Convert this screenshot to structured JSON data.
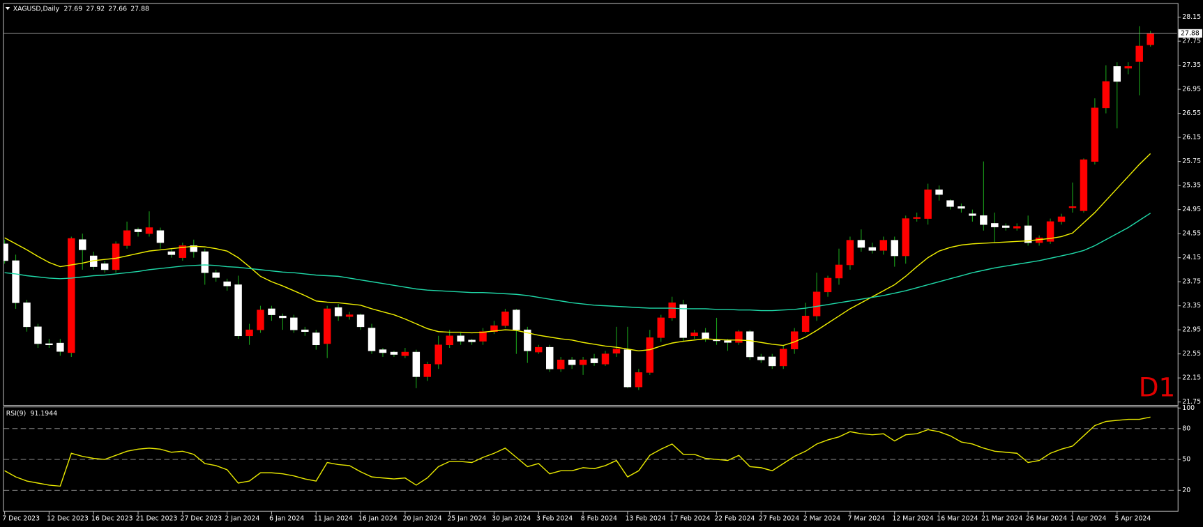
{
  "chart_data": [
    {
      "type": "candlestick",
      "title": "XAGUSD,Daily",
      "timeframe_label": "D1",
      "categories": [
        "7 Dec 2023",
        null,
        null,
        null,
        "12 Dec 2023",
        null,
        null,
        null,
        "16 Dec 2023",
        null,
        null,
        null,
        "21 Dec 2023",
        null,
        null,
        null,
        "27 Dec 2023",
        null,
        null,
        null,
        "2 Jan 2024",
        null,
        null,
        null,
        "6 Jan 2024",
        null,
        null,
        null,
        "11 Jan 2024",
        null,
        null,
        null,
        "16 Jan 2024",
        null,
        null,
        null,
        "20 Jan 2024",
        null,
        null,
        null,
        "25 Jan 2024",
        null,
        null,
        null,
        "30 Jan 2024",
        null,
        null,
        null,
        "3 Feb 2024",
        null,
        null,
        null,
        "8 Feb 2024",
        null,
        null,
        null,
        "13 Feb 2024",
        null,
        null,
        null,
        "17 Feb 2024",
        null,
        null,
        null,
        "22 Feb 2024",
        null,
        null,
        null,
        "27 Feb 2024",
        null,
        null,
        null,
        "2 Mar 2024",
        null,
        null,
        null,
        "7 Mar 2024",
        null,
        null,
        null,
        "12 Mar 2024",
        null,
        null,
        null,
        "16 Mar 2024",
        null,
        null,
        null,
        "21 Mar 2024",
        null,
        null,
        null,
        "26 Mar 2024",
        null,
        null,
        null,
        "1 Apr 2024",
        null,
        null,
        null,
        "5 Apr 2024",
        null,
        null,
        null
      ],
      "open": [
        24.38,
        24.1,
        23.4,
        23.0,
        22.72,
        22.73,
        22.57,
        24.45,
        24.18,
        24.05,
        23.95,
        24.35,
        24.62,
        24.55,
        24.6,
        24.25,
        24.15,
        24.35,
        24.25,
        23.9,
        23.75,
        23.7,
        22.85,
        22.95,
        23.3,
        23.18,
        23.15,
        22.95,
        22.9,
        22.72,
        23.32,
        23.17,
        23.2,
        22.98,
        22.62,
        22.58,
        22.52,
        22.58,
        22.17,
        22.38,
        22.7,
        22.85,
        22.78,
        22.76,
        22.92,
        23.02,
        23.28,
        22.95,
        22.58,
        22.66,
        22.3,
        22.45,
        22.37,
        22.47,
        22.38,
        22.56,
        22.62,
        22.0,
        22.24,
        22.82,
        23.15,
        23.37,
        22.85,
        22.9,
        22.78,
        22.77,
        22.74,
        22.92,
        22.5,
        22.5,
        22.35,
        22.63,
        22.92,
        23.18,
        23.58,
        23.81,
        24.03,
        24.44,
        24.32,
        24.27,
        24.44,
        24.18,
        24.8,
        24.8,
        25.28,
        25.1,
        25.0,
        24.88,
        24.85,
        24.72,
        24.68,
        24.64,
        24.68,
        24.4,
        24.42,
        24.75,
        24.98,
        24.93,
        25.75,
        26.64,
        27.33,
        27.3,
        27.41,
        27.69
      ],
      "high": [
        24.45,
        24.2,
        23.45,
        23.05,
        22.8,
        22.8,
        24.5,
        24.55,
        24.25,
        24.1,
        24.42,
        24.75,
        24.65,
        24.92,
        24.65,
        24.3,
        24.4,
        24.45,
        24.3,
        23.95,
        23.8,
        23.85,
        23.05,
        23.35,
        23.35,
        23.22,
        23.2,
        23.0,
        22.95,
        23.35,
        23.38,
        23.25,
        23.22,
        23.05,
        22.65,
        22.6,
        22.65,
        22.62,
        22.42,
        22.85,
        22.95,
        22.9,
        22.8,
        22.98,
        23.1,
        23.3,
        23.3,
        23.0,
        22.7,
        22.7,
        22.5,
        22.5,
        22.5,
        22.55,
        22.6,
        23.0,
        23.0,
        22.3,
        22.95,
        23.2,
        23.5,
        23.45,
        22.95,
        22.98,
        23.15,
        22.8,
        22.95,
        22.95,
        22.55,
        22.55,
        22.7,
        22.98,
        23.4,
        23.9,
        23.85,
        24.3,
        24.5,
        24.62,
        24.4,
        24.5,
        24.5,
        24.85,
        24.9,
        25.38,
        25.35,
        25.12,
        25.05,
        24.95,
        25.75,
        24.9,
        24.72,
        24.72,
        24.85,
        24.52,
        24.8,
        24.88,
        25.4,
        25.8,
        26.8,
        27.35,
        27.4,
        27.4,
        28.0,
        27.92
      ],
      "low": [
        24.05,
        23.3,
        22.92,
        22.65,
        22.65,
        22.52,
        22.5,
        23.95,
        23.95,
        23.9,
        23.9,
        24.3,
        24.5,
        24.5,
        24.3,
        24.15,
        24.1,
        24.15,
        23.7,
        23.75,
        23.6,
        22.8,
        22.7,
        22.9,
        23.1,
        22.95,
        22.9,
        22.85,
        22.62,
        22.48,
        23.1,
        23.12,
        22.95,
        22.55,
        22.5,
        22.5,
        22.48,
        21.98,
        22.1,
        22.3,
        22.65,
        22.7,
        22.7,
        22.7,
        22.88,
        22.98,
        22.55,
        22.4,
        22.55,
        22.25,
        22.25,
        22.3,
        22.2,
        22.35,
        22.35,
        22.5,
        21.98,
        21.95,
        22.2,
        22.75,
        23.1,
        22.75,
        22.8,
        22.75,
        22.7,
        22.6,
        22.7,
        22.45,
        22.4,
        22.3,
        22.3,
        22.55,
        22.9,
        23.1,
        23.5,
        23.7,
        23.95,
        24.25,
        24.22,
        24.2,
        24.0,
        24.05,
        24.75,
        24.7,
        25.1,
        24.95,
        24.9,
        24.75,
        24.6,
        24.4,
        24.6,
        24.6,
        24.35,
        24.35,
        24.38,
        24.7,
        24.9,
        24.9,
        25.7,
        26.55,
        26.3,
        27.2,
        26.85,
        27.66
      ],
      "close": [
        24.1,
        23.4,
        23.0,
        22.72,
        22.7,
        22.59,
        24.47,
        24.28,
        24.0,
        23.95,
        24.38,
        24.6,
        24.58,
        24.65,
        24.4,
        24.2,
        24.35,
        24.25,
        23.9,
        23.82,
        23.68,
        22.85,
        22.95,
        23.28,
        23.2,
        23.15,
        22.95,
        22.92,
        22.7,
        23.3,
        23.18,
        23.2,
        23.0,
        22.6,
        22.57,
        22.54,
        22.58,
        22.17,
        22.38,
        22.7,
        22.85,
        22.76,
        22.75,
        22.92,
        23.02,
        23.25,
        22.95,
        22.6,
        22.66,
        22.3,
        22.45,
        22.37,
        22.45,
        22.4,
        22.55,
        22.63,
        22.0,
        22.24,
        22.82,
        23.15,
        23.4,
        22.82,
        22.9,
        22.8,
        22.77,
        22.74,
        22.92,
        22.5,
        22.45,
        22.35,
        22.63,
        22.92,
        23.18,
        23.58,
        23.81,
        24.03,
        24.44,
        24.32,
        24.27,
        24.44,
        24.18,
        24.8,
        24.82,
        25.28,
        25.2,
        25.0,
        24.97,
        24.85,
        24.7,
        24.66,
        24.65,
        24.67,
        24.4,
        24.48,
        24.75,
        24.83,
        25.0,
        25.78,
        26.64,
        27.08,
        27.08,
        27.33,
        27.67,
        27.88
      ],
      "series": [
        {
          "color": "#f0f000",
          "values": [
            24.48,
            24.38,
            24.28,
            24.17,
            24.07,
            24.0,
            24.03,
            24.06,
            24.1,
            24.12,
            24.14,
            24.18,
            24.22,
            24.26,
            24.28,
            24.3,
            24.32,
            24.34,
            24.33,
            24.3,
            24.26,
            24.15,
            24.0,
            23.84,
            23.75,
            23.68,
            23.6,
            23.52,
            23.43,
            23.41,
            23.4,
            23.38,
            23.36,
            23.3,
            23.25,
            23.2,
            23.13,
            23.05,
            22.97,
            22.92,
            22.91,
            22.91,
            22.9,
            22.91,
            22.93,
            22.95,
            22.94,
            22.9,
            22.86,
            22.83,
            22.8,
            22.78,
            22.74,
            22.71,
            22.68,
            22.66,
            22.63,
            22.6,
            22.62,
            22.68,
            22.73,
            22.76,
            22.78,
            22.8,
            22.79,
            22.78,
            22.78,
            22.77,
            22.74,
            22.71,
            22.69,
            22.75,
            22.83,
            22.94,
            23.06,
            23.18,
            23.3,
            23.4,
            23.5,
            23.6,
            23.7,
            23.84,
            24.0,
            24.15,
            24.26,
            24.32,
            24.36,
            24.38,
            24.39,
            24.4,
            24.41,
            24.42,
            24.43,
            24.45,
            24.47,
            24.5,
            24.56,
            24.73,
            24.9,
            25.1,
            25.3,
            25.5,
            25.7,
            25.88
          ]
        },
        {
          "color": "#1fd8a8",
          "values": [
            23.9,
            23.88,
            23.85,
            23.83,
            23.81,
            23.8,
            23.81,
            23.83,
            23.85,
            23.86,
            23.88,
            23.9,
            23.92,
            23.95,
            23.97,
            23.99,
            24.01,
            24.02,
            24.03,
            24.02,
            24.0,
            23.99,
            23.97,
            23.95,
            23.93,
            23.91,
            23.9,
            23.88,
            23.86,
            23.85,
            23.84,
            23.81,
            23.78,
            23.75,
            23.72,
            23.69,
            23.66,
            23.63,
            23.61,
            23.6,
            23.59,
            23.58,
            23.57,
            23.57,
            23.56,
            23.55,
            23.54,
            23.52,
            23.49,
            23.46,
            23.43,
            23.4,
            23.38,
            23.36,
            23.35,
            23.34,
            23.33,
            23.32,
            23.31,
            23.31,
            23.31,
            23.3,
            23.3,
            23.3,
            23.29,
            23.29,
            23.28,
            23.28,
            23.27,
            23.27,
            23.28,
            23.29,
            23.31,
            23.34,
            23.37,
            23.4,
            23.43,
            23.46,
            23.49,
            23.52,
            23.56,
            23.6,
            23.65,
            23.7,
            23.75,
            23.8,
            23.85,
            23.9,
            23.94,
            23.98,
            24.01,
            24.04,
            24.07,
            24.1,
            24.14,
            24.18,
            24.22,
            24.27,
            24.35,
            24.45,
            24.55,
            24.65,
            24.77,
            24.89
          ]
        }
      ],
      "up_color": "#ff0000",
      "down_color": "#ffffff",
      "wick_color": "#1aa01a",
      "ylim": [
        21.7,
        28.37
      ],
      "yticks": [
        28.15,
        27.75,
        27.35,
        26.95,
        26.55,
        26.15,
        25.75,
        25.35,
        24.95,
        24.55,
        24.15,
        23.75,
        23.35,
        22.95,
        22.55,
        22.15,
        21.75
      ]
    },
    {
      "type": "line",
      "title": "RSI(9)",
      "color": "#e8e800",
      "values": [
        39,
        33,
        29,
        27,
        25,
        24,
        56,
        53,
        51,
        50,
        54,
        58,
        60,
        61,
        60,
        57,
        58,
        55,
        46,
        44,
        40,
        27,
        29,
        37,
        37,
        36,
        34,
        31,
        29,
        47,
        45,
        44,
        38,
        33,
        32,
        31,
        32,
        25,
        32,
        43,
        48,
        48,
        47,
        52,
        56,
        61,
        52,
        43,
        46,
        36,
        39,
        39,
        42,
        41,
        44,
        49,
        33,
        39,
        54,
        60,
        65,
        55,
        55,
        51,
        50,
        49,
        54,
        43,
        42,
        39,
        46,
        53,
        58,
        65,
        69,
        72,
        77,
        75,
        74,
        75,
        68,
        74,
        75,
        79,
        77,
        73,
        67,
        65,
        61,
        58,
        57,
        56,
        47,
        49,
        56,
        60,
        63,
        73,
        83,
        87,
        88,
        89,
        89,
        91.1944
      ],
      "ylim": [
        0,
        100
      ],
      "yticks": [
        100,
        80,
        50,
        20
      ]
    }
  ]
}
